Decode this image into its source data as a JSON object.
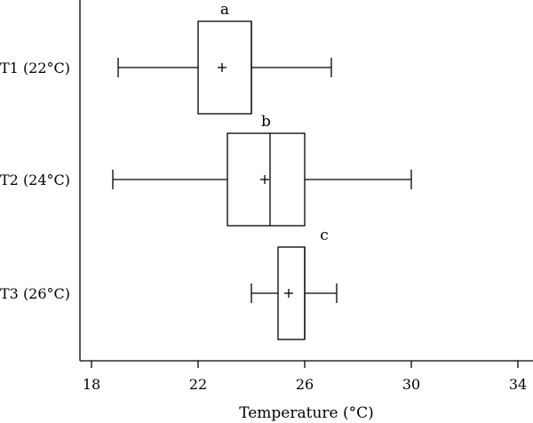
{
  "chart_data": {
    "type": "boxplot",
    "orientation": "horizontal",
    "xlabel": "Temperature (°C)",
    "ylabel": "",
    "xlim": [
      17.5,
      35
    ],
    "xticks": [
      18,
      22,
      26,
      30,
      34
    ],
    "grid": false,
    "categories": [
      "T1 (22°C)",
      "T2 (24°C)",
      "T3 (26°C)"
    ],
    "boxes": [
      {
        "label": "T1 (22°C)",
        "whisker_low": 19.0,
        "q1": 22.0,
        "median": 24.0,
        "q3": 24.0,
        "whisker_high": 27.0,
        "mean": 22.9,
        "group_letter": "a"
      },
      {
        "label": "T2 (24°C)",
        "whisker_low": 18.8,
        "q1": 23.1,
        "median": 24.7,
        "q3": 26.0,
        "whisker_high": 30.0,
        "mean": 24.5,
        "group_letter": "b"
      },
      {
        "label": "T3 (26°C)",
        "whisker_low": 24.0,
        "q1": 25.0,
        "median": 26.0,
        "q3": 26.0,
        "whisker_high": 27.2,
        "mean": 25.4,
        "group_letter": "c"
      }
    ]
  }
}
